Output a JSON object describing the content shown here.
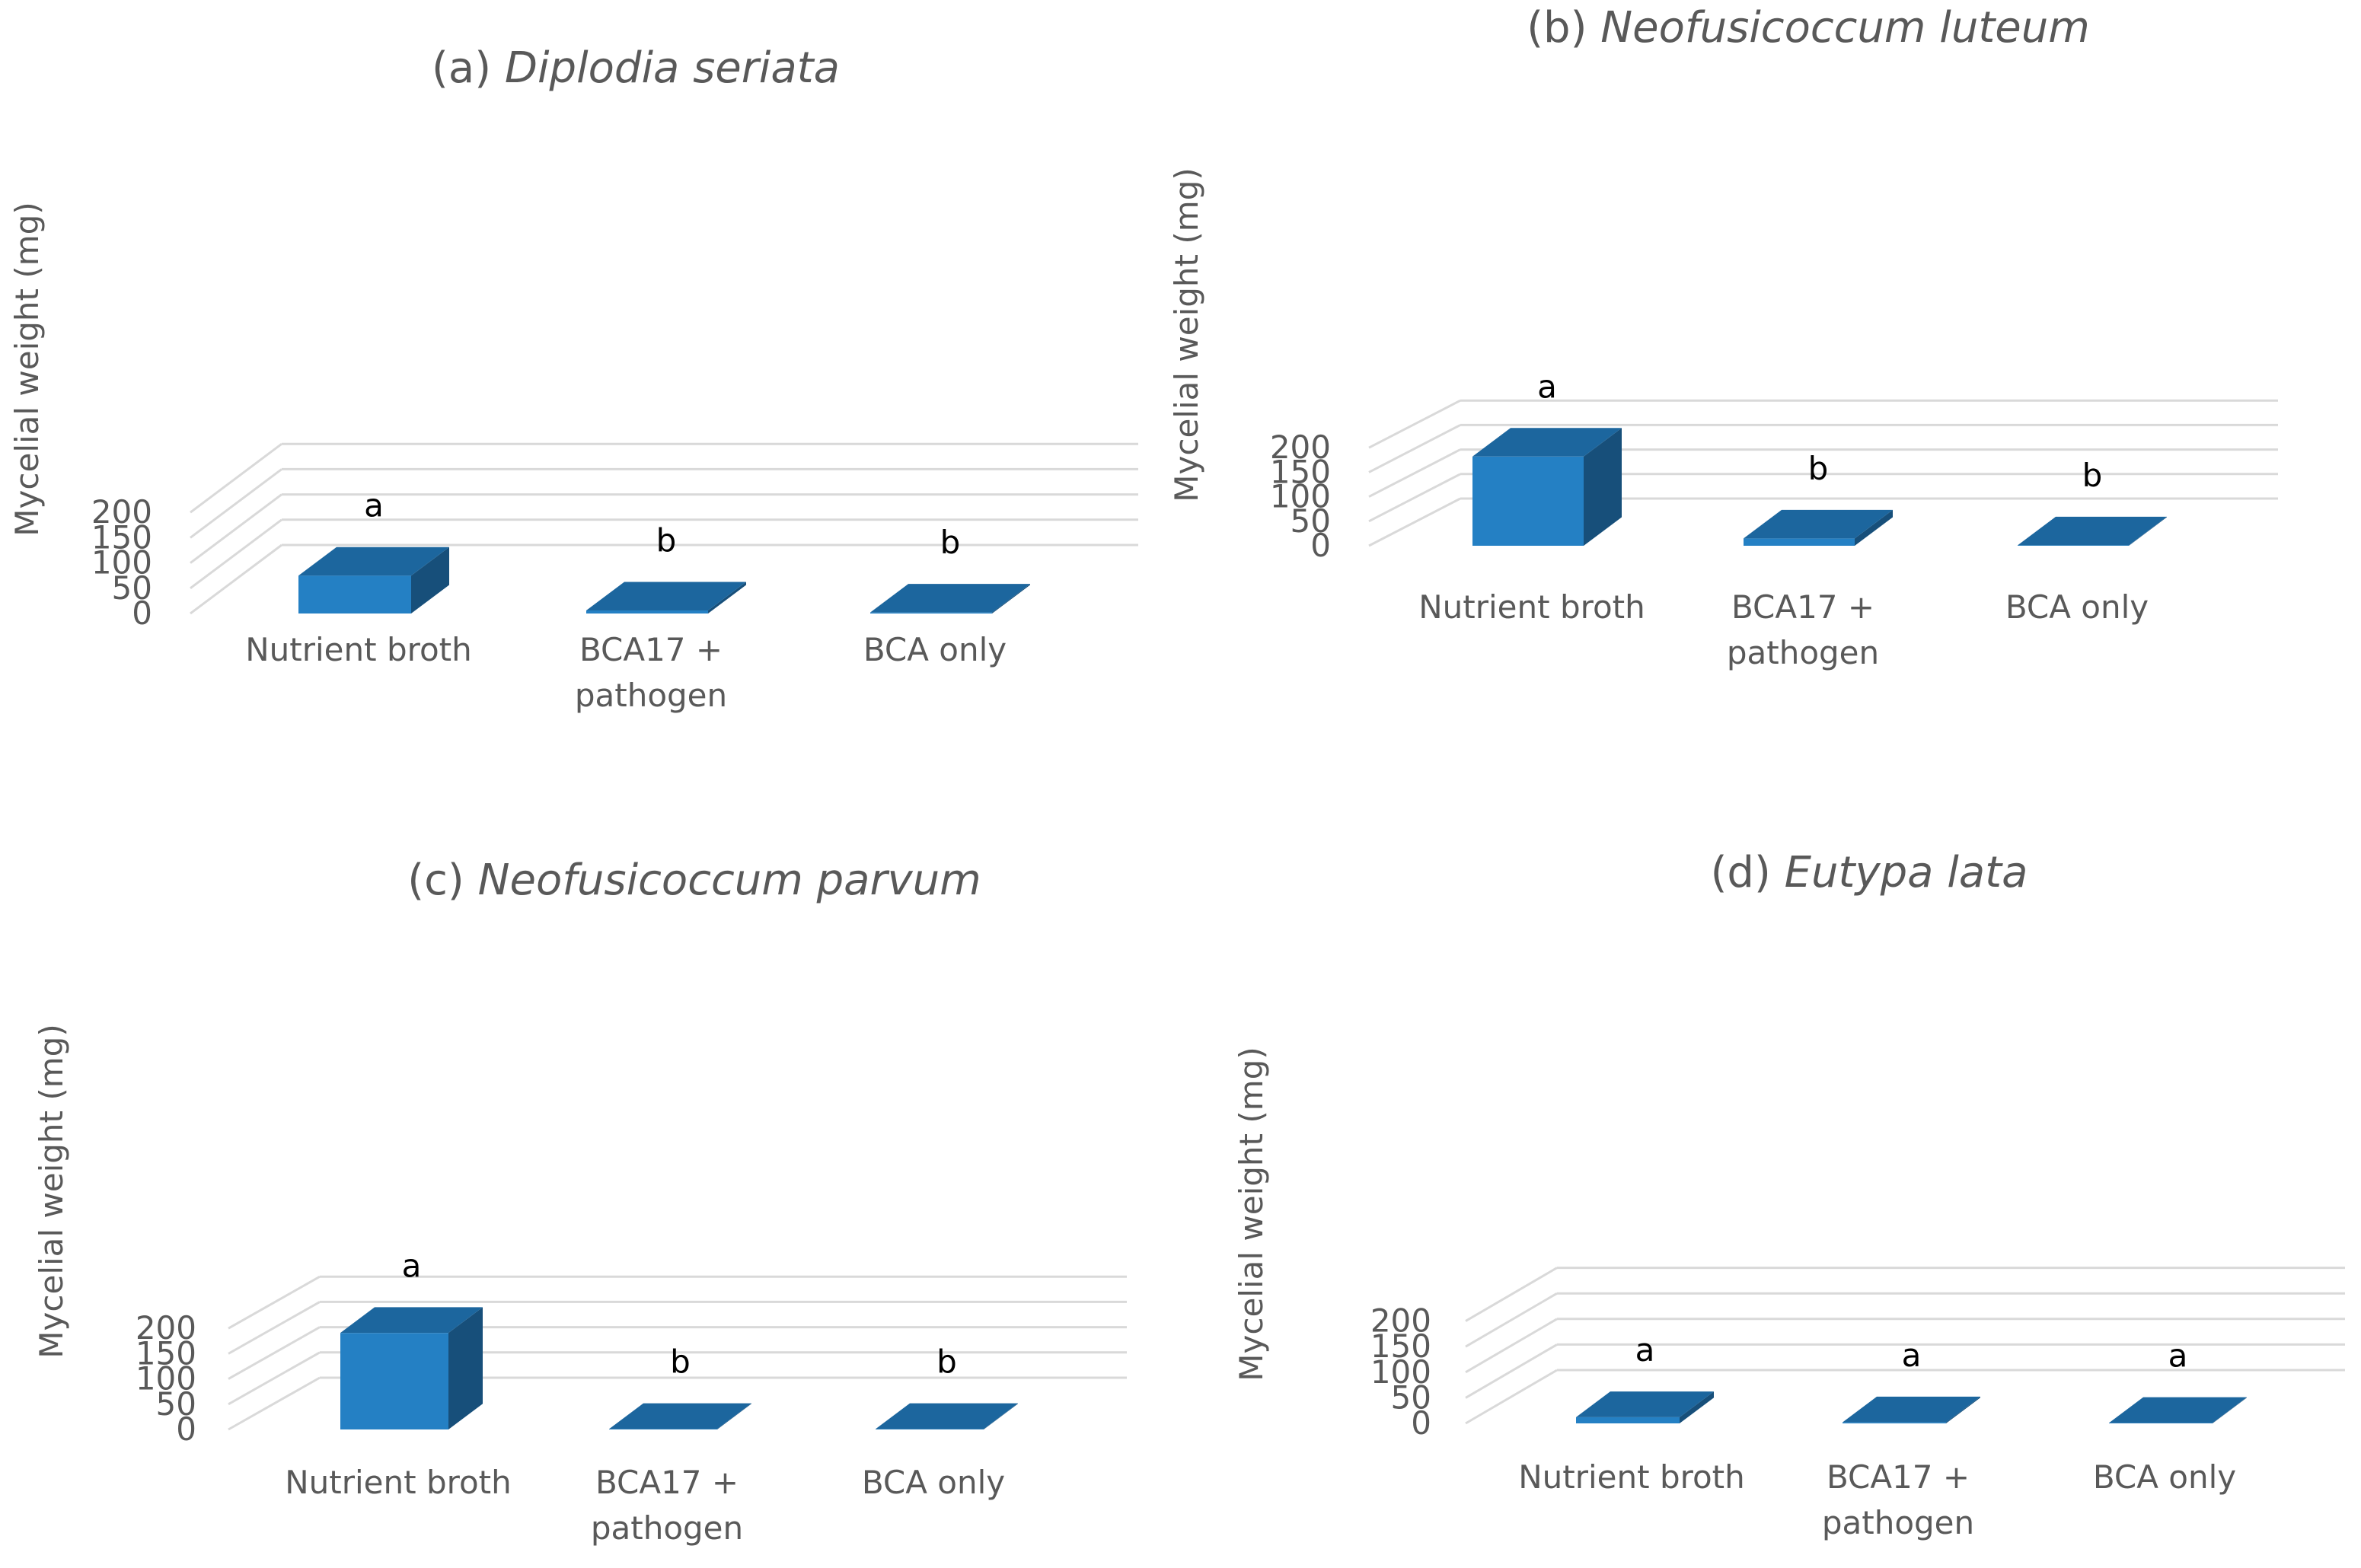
{
  "chart_data": [
    {
      "type": "bar",
      "title_prefix": "(a)",
      "title_species": "Diplodia seriata",
      "ylabel": "Mycelial weight (mg)",
      "ylim": [
        0,
        200
      ],
      "yticks": [
        "0",
        "50",
        "100",
        "150",
        "200"
      ],
      "categories": [
        [
          "Nutrient broth"
        ],
        [
          "BCA17 +",
          "pathogen"
        ],
        [
          "BCA only"
        ]
      ],
      "values": [
        75,
        6,
        2
      ],
      "significance": [
        "a",
        "b",
        "b"
      ],
      "grid": true
    },
    {
      "type": "bar",
      "title_prefix": "(b)",
      "title_species": "Neofusicoccum luteum",
      "ylabel": "Mycelial weight (mg)",
      "ylim": [
        0,
        200
      ],
      "yticks": [
        "0",
        "50",
        "100",
        "150",
        "200"
      ],
      "categories": [
        [
          "Nutrient broth"
        ],
        [
          "BCA17 +",
          "pathogen"
        ],
        [
          "BCA only"
        ]
      ],
      "values": [
        182,
        15,
        1
      ],
      "significance": [
        "a",
        "b",
        "b"
      ],
      "grid": true
    },
    {
      "type": "bar",
      "title_prefix": "(c)",
      "title_species": "Neofusicoccum parvum",
      "ylabel": "Mycelial weight (mg)",
      "ylim": [
        0,
        200
      ],
      "yticks": [
        "0",
        "50",
        "100",
        "150",
        "200"
      ],
      "categories": [
        [
          "Nutrient broth"
        ],
        [
          "BCA17 +",
          "pathogen"
        ],
        [
          "BCA only"
        ]
      ],
      "values": [
        191,
        1,
        1
      ],
      "significance": [
        "a",
        "b",
        "b"
      ],
      "grid": true
    },
    {
      "type": "bar",
      "title_prefix": "(d)",
      "title_species": "Eutypa lata",
      "ylabel": "Mycelial weight (mg)",
      "ylim": [
        0,
        200
      ],
      "yticks": [
        "0",
        "50",
        "100",
        "150",
        "200"
      ],
      "categories": [
        [
          "Nutrient broth"
        ],
        [
          "BCA17 +",
          "pathogen"
        ],
        [
          "BCA only"
        ]
      ],
      "values": [
        12,
        2,
        1
      ],
      "significance": [
        "a",
        "a",
        "a"
      ],
      "grid": true
    }
  ],
  "colors": {
    "bar_front": "#2480C4",
    "bar_side": "#174F7A",
    "bar_top": "#1C669E",
    "grid": "#D9D9D9",
    "text": "#595959",
    "sig_text": "#000000"
  }
}
